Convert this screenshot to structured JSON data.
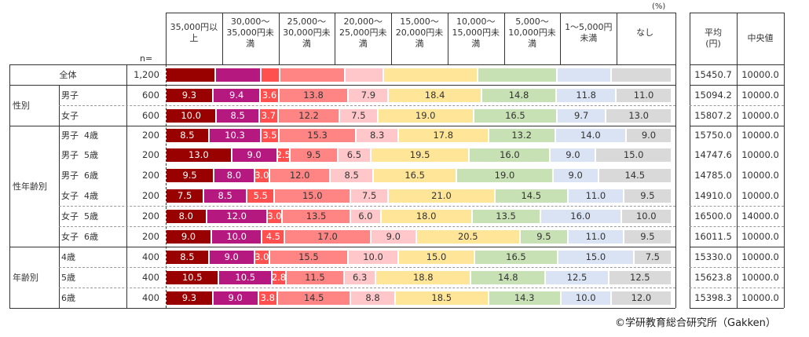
{
  "unit_label": "(%)",
  "n_label": "n=",
  "footer": "©学研教育総合研究所（Gakken）",
  "stats_headers": {
    "mean": "平均\n(円)",
    "median": "中央値"
  },
  "chart_data": {
    "type": "bar",
    "orientation": "horizontal-stacked-100",
    "title": "",
    "xlabel": "",
    "ylabel": "",
    "unit": "%",
    "categories_legend": [
      "35,000円以上",
      "30,000～35,000円未満",
      "25,000～30,000円未満",
      "20,000～25,000円未満",
      "15,000～20,000円未満",
      "10,000～15,000円未満",
      "5,000～10,000円未満",
      "1～5,000円未満",
      "なし"
    ],
    "legend_headers": [
      "35,000円以\n上",
      "30,000～\n35,000円未\n満",
      "25,000～\n30,000円未\n満",
      "20,000～\n25,000円未\n満",
      "15,000～\n20,000円未\n満",
      "10,000～\n15,000円未\n満",
      "5,000～\n10,000円未\n満",
      "1～5,000円\n未満",
      "なし"
    ],
    "colors": [
      "#990000",
      "#B5197F",
      "#FF5050",
      "#FF8585",
      "#FFC7CA",
      "#FFE597",
      "#C7E0B4",
      "#DAE3F3",
      "#D9D9D9"
    ],
    "text_colors": [
      "#ffffff",
      "#ffffff",
      "#ffffff",
      "#333333",
      "#333333",
      "#333333",
      "#333333",
      "#333333",
      "#333333"
    ],
    "groups": [
      {
        "label": "全体",
        "rows": [
          0
        ]
      },
      {
        "label": "性別",
        "rows": [
          1,
          2
        ]
      },
      {
        "label": "性年齢別",
        "rows": [
          3,
          4,
          5,
          6,
          7,
          8
        ]
      },
      {
        "label": "年齢別",
        "rows": [
          9,
          10,
          11
        ]
      }
    ],
    "rows": [
      {
        "label": "全体",
        "n": "1,200",
        "values": [
          9.9,
          9.0,
          3.7,
          13.0,
          7.7,
          18.7,
          15.7,
          10.8,
          12.0
        ],
        "show_labels": false,
        "mean": "15450.7",
        "median": "10000.0"
      },
      {
        "label": "男子",
        "n": "600",
        "values": [
          9.3,
          9.4,
          3.6,
          13.8,
          7.9,
          18.4,
          14.8,
          11.8,
          11.0
        ],
        "show_labels": true,
        "mean": "15094.2",
        "median": "10000.0"
      },
      {
        "label": "女子",
        "n": "600",
        "values": [
          10.0,
          8.5,
          3.7,
          12.2,
          7.5,
          19.0,
          16.5,
          9.7,
          13.0
        ],
        "show_labels": true,
        "mean": "15807.2",
        "median": "10000.0"
      },
      {
        "label": "男子  4歳",
        "n": "200",
        "values": [
          8.5,
          10.3,
          3.5,
          15.3,
          8.3,
          17.8,
          13.2,
          14.0,
          9.0
        ],
        "show_labels": true,
        "mean": "15750.0",
        "median": "10000.0"
      },
      {
        "label": "男子  5歳",
        "n": "200",
        "values": [
          13.0,
          9.0,
          2.5,
          9.5,
          6.5,
          19.5,
          16.0,
          9.0,
          15.0
        ],
        "show_labels": true,
        "mean": "14747.6",
        "median": "10000.0"
      },
      {
        "label": "男子  6歳",
        "n": "200",
        "values": [
          9.5,
          8.0,
          3.0,
          12.0,
          8.5,
          16.5,
          19.0,
          9.0,
          14.5
        ],
        "show_labels": true,
        "mean": "14785.0",
        "median": "10000.0"
      },
      {
        "label": "女子  4歳",
        "n": "200",
        "values": [
          7.5,
          8.5,
          5.5,
          15.0,
          7.5,
          21.0,
          14.5,
          11.0,
          9.5
        ],
        "show_labels": true,
        "mean": "14910.0",
        "median": "10000.0"
      },
      {
        "label": "女子  5歳",
        "n": "200",
        "values": [
          8.0,
          12.0,
          3.0,
          13.5,
          6.0,
          18.0,
          13.5,
          16.0,
          10.0
        ],
        "show_labels": true,
        "mean": "16500.0",
        "median": "14000.0"
      },
      {
        "label": "女子  6歳",
        "n": "200",
        "values": [
          9.0,
          10.0,
          4.5,
          17.0,
          9.0,
          20.5,
          9.5,
          11.0,
          9.5
        ],
        "show_labels": true,
        "mean": "16011.5",
        "median": "10000.0"
      },
      {
        "label": "4歳",
        "n": "400",
        "values": [
          8.5,
          9.0,
          3.0,
          15.5,
          10.0,
          15.0,
          16.5,
          15.0,
          7.5
        ],
        "show_labels": true,
        "mean": "15330.0",
        "median": "10000.0"
      },
      {
        "label": "5歳",
        "n": "400",
        "values": [
          10.5,
          10.5,
          2.8,
          11.5,
          6.3,
          18.8,
          14.8,
          12.5,
          12.5
        ],
        "show_labels": true,
        "mean": "15623.8",
        "median": "10000.0"
      },
      {
        "label": "6歳",
        "n": "400",
        "values": [
          9.3,
          9.0,
          3.8,
          14.5,
          8.8,
          18.5,
          14.3,
          10.0,
          12.0
        ],
        "show_labels": true,
        "mean": "15398.3",
        "median": "10000.0"
      }
    ],
    "row_8yo_note": "",
    "xlim": [
      0,
      100
    ]
  }
}
